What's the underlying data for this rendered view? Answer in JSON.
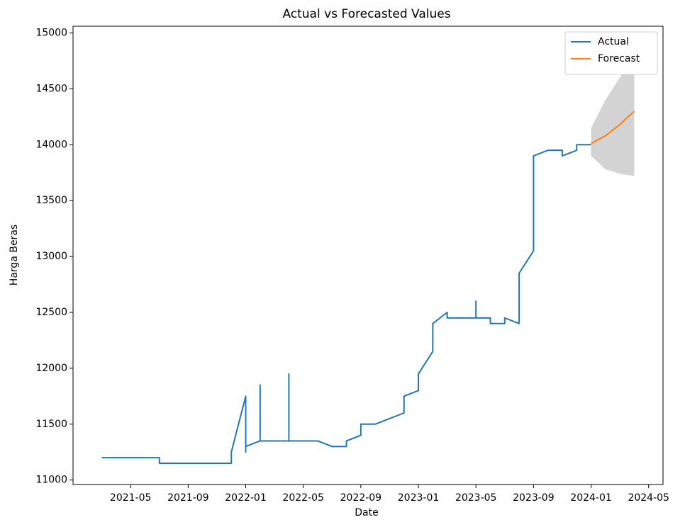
{
  "chart_data": {
    "type": "line",
    "title": "Actual vs Forecasted Values",
    "x_label": "Date",
    "y_label": "Harga Beras",
    "xlim": [
      "2021-01",
      "2024-06"
    ],
    "xticks": [
      "2021-05",
      "2021-09",
      "2022-01",
      "2022-05",
      "2022-09",
      "2023-01",
      "2023-05",
      "2023-09",
      "2024-01",
      "2024-05"
    ],
    "ylim": [
      10960,
      15060
    ],
    "yticks": [
      11000,
      11500,
      12000,
      12500,
      13000,
      13500,
      14000,
      14500,
      15000
    ],
    "legend": "upper right",
    "series": [
      {
        "name": "Actual",
        "color": "#1f77b4",
        "x": [
          "2021-03",
          "2021-07",
          "2021-07",
          "2021-12",
          "2021-12",
          "2021-12",
          "2022-01",
          "2022-01",
          "2022-01",
          "2022-02",
          "2022-02",
          "2022-02",
          "2022-04",
          "2022-04",
          "2022-04",
          "2022-06",
          "2022-07",
          "2022-08",
          "2022-08",
          "2022-09",
          "2022-09",
          "2022-10",
          "2022-11",
          "2022-12",
          "2022-12",
          "2023-01",
          "2023-01",
          "2023-02",
          "2023-02",
          "2023-03",
          "2023-03",
          "2023-05",
          "2023-05",
          "2023-05",
          "2023-06",
          "2023-06",
          "2023-07",
          "2023-07",
          "2023-08",
          "2023-08",
          "2023-08",
          "2023-09",
          "2023-09",
          "2023-09",
          "2023-10",
          "2023-11",
          "2023-11",
          "2023-12",
          "2023-12",
          "2024-01"
        ],
        "values": [
          11200,
          11200,
          11150,
          11150,
          11200,
          11250,
          11750,
          11250,
          11300,
          11350,
          11850,
          11350,
          11350,
          11950,
          11350,
          11350,
          11300,
          11300,
          11350,
          11400,
          11500,
          11500,
          11550,
          11600,
          11750,
          11800,
          11950,
          12150,
          12400,
          12500,
          12450,
          12450,
          12600,
          12450,
          12450,
          12400,
          12400,
          12450,
          12400,
          12550,
          12850,
          13050,
          13750,
          13900,
          13950,
          13950,
          13900,
          13950,
          14000,
          14000
        ]
      },
      {
        "name": "Forecast",
        "color": "#ff7f0e",
        "x": [
          "2024-01",
          "2024-02",
          "2024-03",
          "2024-04"
        ],
        "values": [
          14010,
          14080,
          14180,
          14300
        ]
      }
    ],
    "band": {
      "color": "#d3d3d3",
      "x": [
        "2024-01",
        "2024-02",
        "2024-03",
        "2024-04"
      ],
      "upper": [
        14150,
        14400,
        14600,
        14800
      ],
      "lower": [
        13900,
        13780,
        13740,
        13720
      ]
    }
  }
}
